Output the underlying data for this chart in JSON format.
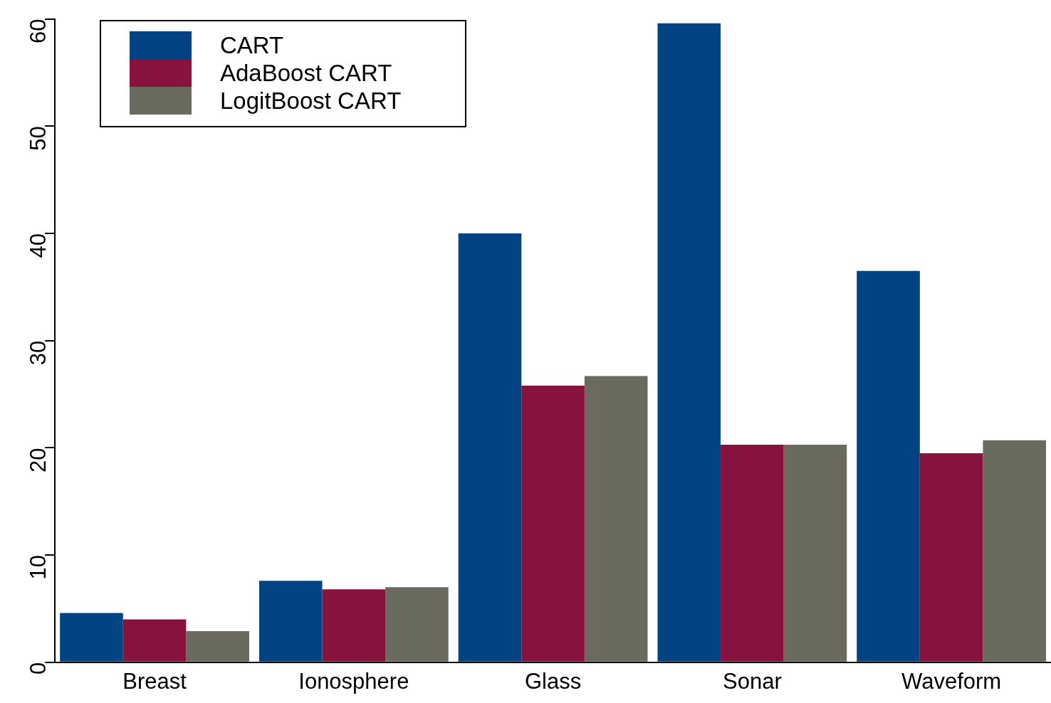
{
  "chart_data": {
    "type": "bar",
    "categories": [
      "Breast",
      "Ionosphere",
      "Glass",
      "Sonar",
      "Waveform"
    ],
    "series": [
      {
        "name": "CART",
        "color": "#024384",
        "values": [
          4.6,
          7.6,
          40,
          59.6,
          36.5
        ]
      },
      {
        "name": "AdaBoost CART",
        "color": "#86123d",
        "values": [
          4.0,
          6.8,
          25.8,
          20.3,
          19.5
        ]
      },
      {
        "name": "LogitBoost CART",
        "color": "#6a6a5e",
        "values": [
          2.9,
          7.0,
          26.7,
          20.3,
          20.7
        ]
      }
    ],
    "ylim": [
      0,
      60
    ],
    "yticks": [
      0,
      10,
      20,
      30,
      40,
      50,
      60
    ],
    "grid": false,
    "legend": "top left"
  }
}
